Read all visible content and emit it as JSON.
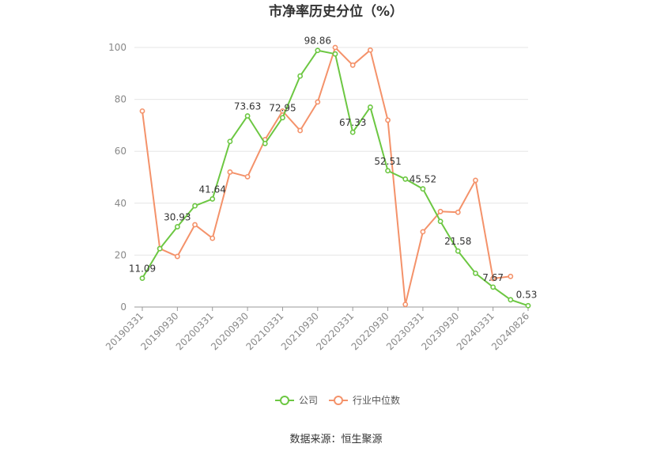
{
  "chart_data": {
    "type": "line",
    "title": "市净率历史分位（%）",
    "source": "数据来源：恒生聚源",
    "ylim": [
      0,
      100
    ],
    "yticks": [
      0,
      20,
      40,
      60,
      80,
      100
    ],
    "x_tick_labels": [
      "20190331",
      "20190930",
      "20200331",
      "20200930",
      "20210331",
      "20210930",
      "20220331",
      "20220930",
      "20230331",
      "20230930",
      "20240331",
      "20240826"
    ],
    "x": [
      "20190331",
      "20190630",
      "20190930",
      "20191231",
      "20200331",
      "20200630",
      "20200930",
      "20201231",
      "20210331",
      "20210630",
      "20210930",
      "20211231",
      "20220331",
      "20220630",
      "20220930",
      "20221231",
      "20230331",
      "20230630",
      "20230930",
      "20231231",
      "20240331",
      "20240630",
      "20240826"
    ],
    "series": [
      {
        "name": "公司",
        "color": "#6cc742",
        "values": [
          11.09,
          22.5,
          30.93,
          39.0,
          41.64,
          63.8,
          73.63,
          63.0,
          72.95,
          89.0,
          98.86,
          97.5,
          67.33,
          77.0,
          52.51,
          49.3,
          45.52,
          33.0,
          21.58,
          13.0,
          7.67,
          2.8,
          0.53
        ],
        "labels": {
          "0": "11.09",
          "2": "30.93",
          "4": "41.64",
          "6": "73.63",
          "8": "72.95",
          "10": "98.86",
          "12": "67.33",
          "14": "52.51",
          "16": "45.52",
          "18": "21.58",
          "20": "7.67",
          "22": "0.53"
        }
      },
      {
        "name": "行业中位数",
        "color": "#f4926a",
        "values": [
          75.5,
          22.5,
          19.5,
          31.7,
          26.5,
          52.0,
          50.2,
          64.5,
          75.5,
          68.0,
          79.0,
          100.0,
          93.2,
          99.0,
          72.0,
          1.0,
          29.0,
          36.8,
          36.5,
          48.8,
          11.0,
          11.8,
          null
        ]
      }
    ],
    "legend_position": "bottom-center",
    "grid": true
  }
}
